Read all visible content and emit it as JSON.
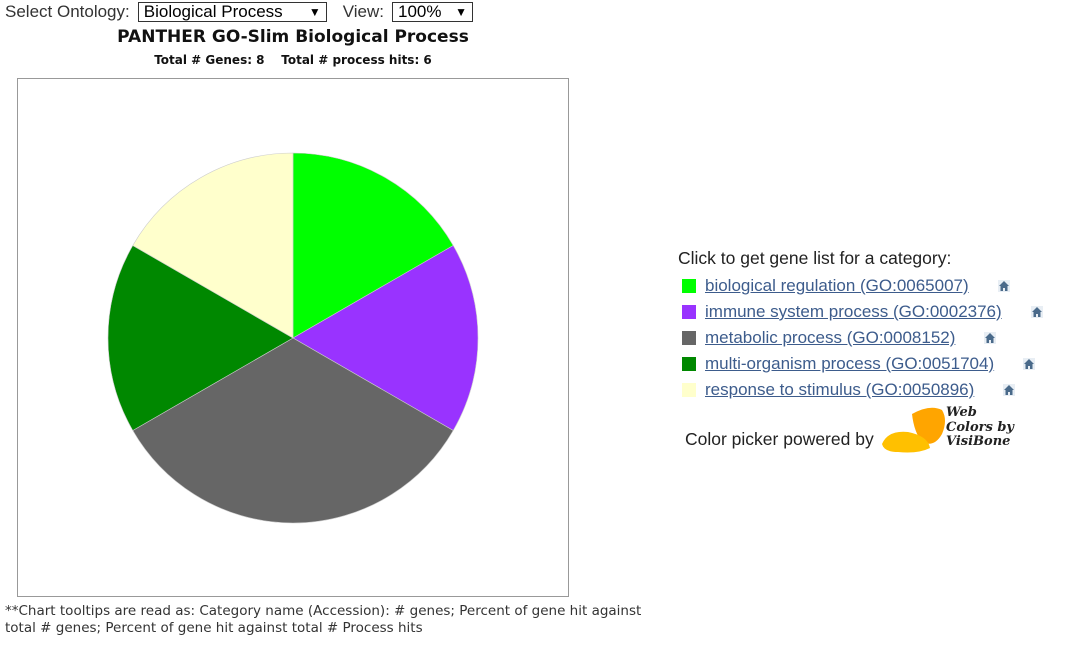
{
  "toolbar": {
    "ontology_label": "Select Ontology:",
    "ontology_value": "Biological Process",
    "view_label": "View:",
    "view_value": "100%"
  },
  "chart_data": {
    "type": "pie",
    "title": "PANTHER GO-Slim Biological Process",
    "subtitle": "Total # Genes: 8    Total # process hits: 6",
    "categories": [
      "biological regulation (GO:0065007)",
      "immune system process (GO:0002376)",
      "metabolic process (GO:0008152)",
      "multi-organism process (GO:0051704)",
      "response to stimulus (GO:0050896)"
    ],
    "values": [
      1,
      1,
      2,
      1,
      1
    ],
    "colors": [
      "#00ff00",
      "#9933ff",
      "#666666",
      "#008800",
      "#ffffcc"
    ],
    "legend": "right"
  },
  "legend": {
    "heading": "Click to get gene list for a category:",
    "icon": "home-icon"
  },
  "footnote": "**Chart tooltips are read as: Category name (Accession): # genes; Percent of gene hit against total # genes; Percent of gene hit against total # Process hits",
  "colorpicker": {
    "text": "Color picker powered by",
    "logo_line1": "Web",
    "logo_line2": "Colors by",
    "logo_line3": "VisiBone",
    "logo_color": "#ffa500"
  }
}
